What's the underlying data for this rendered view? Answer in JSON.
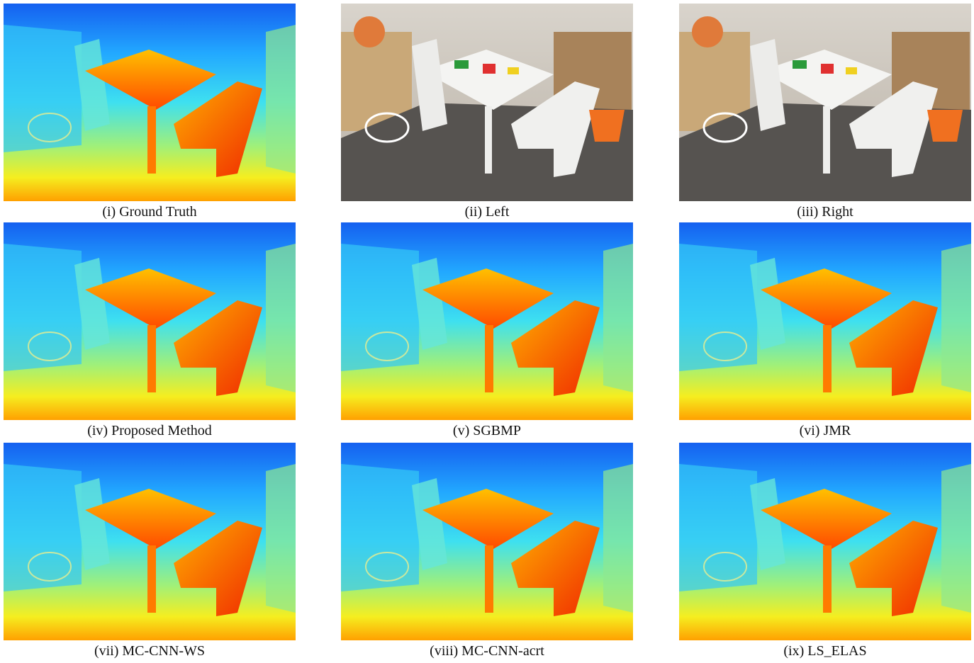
{
  "panels": [
    {
      "caption": "(i) Ground Truth"
    },
    {
      "caption": "(ii) Left"
    },
    {
      "caption": "(iii) Right"
    },
    {
      "caption": "(iv) Proposed Method"
    },
    {
      "caption": "(v) SGBMP"
    },
    {
      "caption": "(vi) JMR"
    },
    {
      "caption": "(vii) MC-CNN-WS"
    },
    {
      "caption": "(viii) MC-CNN-acrt"
    },
    {
      "caption": "(ix) LS_ELAS"
    }
  ]
}
